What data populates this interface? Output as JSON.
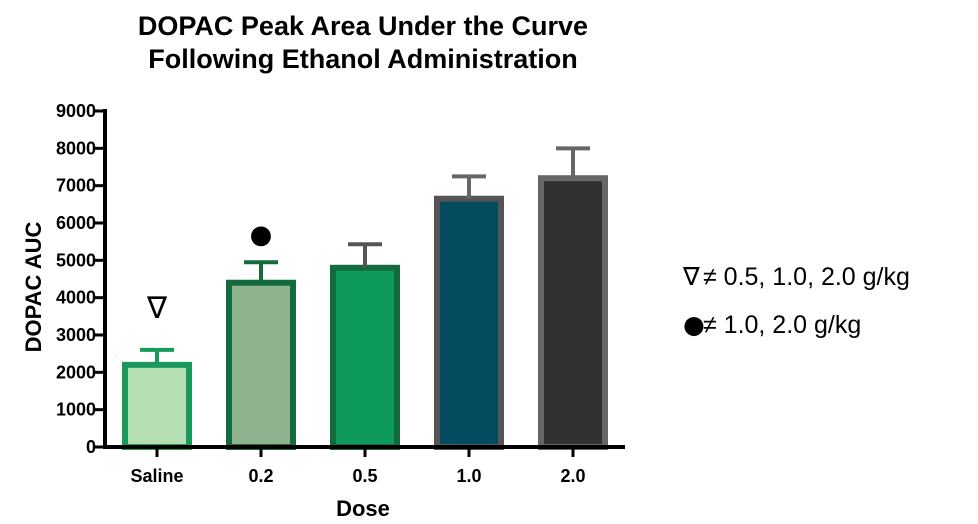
{
  "chart_data": {
    "type": "bar",
    "title_line1": "DOPAC Peak Area Under the Curve",
    "title_line2": "Following Ethanol Administration",
    "xlabel": "Dose",
    "ylabel": "DOPAC AUC",
    "ylim": [
      0,
      9000
    ],
    "yticks": [
      "0",
      "1000",
      "2000",
      "3000",
      "4000",
      "5000",
      "6000",
      "7000",
      "8000",
      "9000"
    ],
    "categories": [
      "Saline",
      "0.2",
      "0.5",
      "1.0",
      "2.0"
    ],
    "values": [
      2200,
      4400,
      4800,
      6650,
      7200
    ],
    "errors": [
      400,
      550,
      630,
      600,
      800
    ],
    "fill_colors": [
      "#b3dfb3",
      "#8db28d",
      "#0e9a5a",
      "#034b5e",
      "#303030"
    ],
    "edge_colors": [
      "#1a9a5a",
      "#136b3b",
      "#136b3b",
      "#555555",
      "#666666"
    ],
    "error_colors": [
      "#1a9a5a",
      "#136b3b",
      "#555555",
      "#666666",
      "#666666"
    ],
    "markers": [
      {
        "category": "Saline",
        "symbol": "∇",
        "icon": "nabla-icon"
      },
      {
        "category": "0.2",
        "symbol": "●",
        "icon": "bullet-icon"
      }
    ],
    "legend": [
      {
        "symbol": "∇",
        "text": "≠ 0.5, 1.0, 2.0 g/kg"
      },
      {
        "symbol": "●",
        "text": "≠ 1.0, 2.0 g/kg"
      }
    ],
    "grid": false
  }
}
